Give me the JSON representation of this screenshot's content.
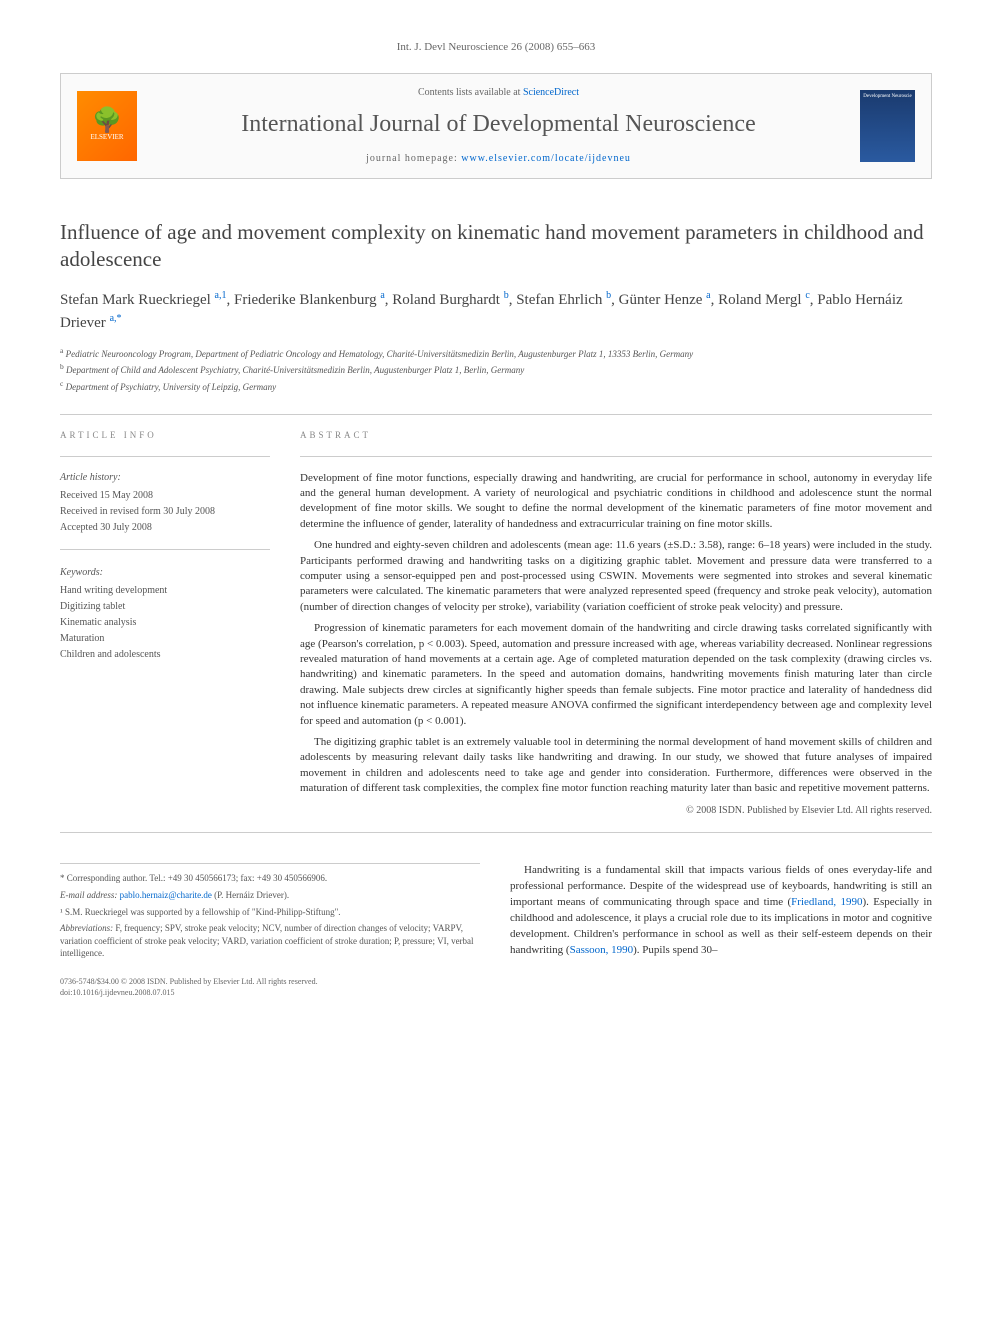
{
  "journal_ref": "Int. J. Devl Neuroscience 26 (2008) 655–663",
  "header": {
    "elsevier_label": "ELSEVIER",
    "contents_prefix": "Contents lists available at ",
    "contents_link": "ScienceDirect",
    "journal_name": "International Journal of Developmental Neuroscience",
    "homepage_prefix": "journal homepage: ",
    "homepage_url": "www.elsevier.com/locate/ijdevneu",
    "cover_text": "Development Neuroscie"
  },
  "title": "Influence of age and movement complexity on kinematic hand movement parameters in childhood and adolescence",
  "authors_html": "Stefan Mark Rueckriegel <sup>a,1</sup>, Friederike Blankenburg <sup>a</sup>, Roland Burghardt <sup>b</sup>, Stefan Ehrlich <sup>b</sup>, Günter Henze <sup>a</sup>, Roland Mergl <sup>c</sup>, Pablo Hernáiz Driever <sup>a,*</sup>",
  "affiliations": [
    {
      "sup": "a",
      "text": "Pediatric Neurooncology Program, Department of Pediatric Oncology and Hematology, Charité-Universitätsmedizin Berlin, Augustenburger Platz 1, 13353 Berlin, Germany"
    },
    {
      "sup": "b",
      "text": "Department of Child and Adolescent Psychiatry, Charité-Universitätsmedizin Berlin, Augustenburger Platz 1, Berlin, Germany"
    },
    {
      "sup": "c",
      "text": "Department of Psychiatry, University of Leipzig, Germany"
    }
  ],
  "article_info": {
    "label": "ARTICLE INFO",
    "history_label": "Article history:",
    "received": "Received 15 May 2008",
    "revised": "Received in revised form 30 July 2008",
    "accepted": "Accepted 30 July 2008",
    "keywords_label": "Keywords:",
    "keywords": [
      "Hand writing development",
      "Digitizing tablet",
      "Kinematic analysis",
      "Maturation",
      "Children and adolescents"
    ]
  },
  "abstract": {
    "label": "ABSTRACT",
    "paragraphs": [
      "Development of fine motor functions, especially drawing and handwriting, are crucial for performance in school, autonomy in everyday life and the general human development. A variety of neurological and psychiatric conditions in childhood and adolescence stunt the normal development of fine motor skills. We sought to define the normal development of the kinematic parameters of fine motor movement and determine the influence of gender, laterality of handedness and extracurricular training on fine motor skills.",
      "One hundred and eighty-seven children and adolescents (mean age: 11.6 years (±S.D.: 3.58), range: 6–18 years) were included in the study. Participants performed drawing and handwriting tasks on a digitizing graphic tablet. Movement and pressure data were transferred to a computer using a sensor-equipped pen and post-processed using CSWIN. Movements were segmented into strokes and several kinematic parameters were calculated. The kinematic parameters that were analyzed represented speed (frequency and stroke peak velocity), automation (number of direction changes of velocity per stroke), variability (variation coefficient of stroke peak velocity) and pressure.",
      "Progression of kinematic parameters for each movement domain of the handwriting and circle drawing tasks correlated significantly with age (Pearson's correlation, p < 0.003). Speed, automation and pressure increased with age, whereas variability decreased. Nonlinear regressions revealed maturation of hand movements at a certain age. Age of completed maturation depended on the task complexity (drawing circles vs. handwriting) and kinematic parameters. In the speed and automation domains, handwriting movements finish maturing later than circle drawing. Male subjects drew circles at significantly higher speeds than female subjects. Fine motor practice and laterality of handedness did not influence kinematic parameters. A repeated measure ANOVA confirmed the significant interdependency between age and complexity level for speed and automation (p < 0.001).",
      "The digitizing graphic tablet is an extremely valuable tool in determining the normal development of hand movement skills of children and adolescents by measuring relevant daily tasks like handwriting and drawing. In our study, we showed that future analyses of impaired movement in children and adolescents need to take age and gender into consideration. Furthermore, differences were observed in the maturation of different task complexities, the complex fine motor function reaching maturity later than basic and repetitive movement patterns."
    ],
    "copyright": "© 2008 ISDN. Published by Elsevier Ltd. All rights reserved."
  },
  "footnotes": {
    "corresponding": "* Corresponding author. Tel.: +49 30 450566173; fax: +49 30 450566906.",
    "email_label": "E-mail address: ",
    "email": "pablo.hernaiz@charite.de",
    "email_person": " (P. Hernáiz Driever).",
    "note1": "¹ S.M. Rueckriegel was supported by a fellowship of \"Kind-Philipp-Stiftung\".",
    "abbrev_label": "Abbreviations: ",
    "abbrev_text": "F, frequency; SPV, stroke peak velocity; NCV, number of direction changes of velocity; VARPV, variation coefficient of stroke peak velocity; VARD, variation coefficient of stroke duration; P, pressure; VI, verbal intelligence."
  },
  "body_intro": "Handwriting is a fundamental skill that impacts various fields of ones everyday-life and professional performance. Despite of the widespread use of keyboards, handwriting is still an important means of communicating through space and time (Friedland, 1990). Especially in childhood and adolescence, it plays a crucial role due to its implications in motor and cognitive development. Children's performance in school as well as their self-esteem depends on their handwriting (Sassoon, 1990). Pupils spend 30–",
  "body_links": {
    "friedland": "Friedland, 1990",
    "sassoon": "Sassoon, 1990"
  },
  "footer": {
    "issn": "0736-5748/$34.00 © 2008 ISDN. Published by Elsevier Ltd. All rights reserved.",
    "doi": "doi:10.1016/j.ijdevneu.2008.07.015"
  }
}
